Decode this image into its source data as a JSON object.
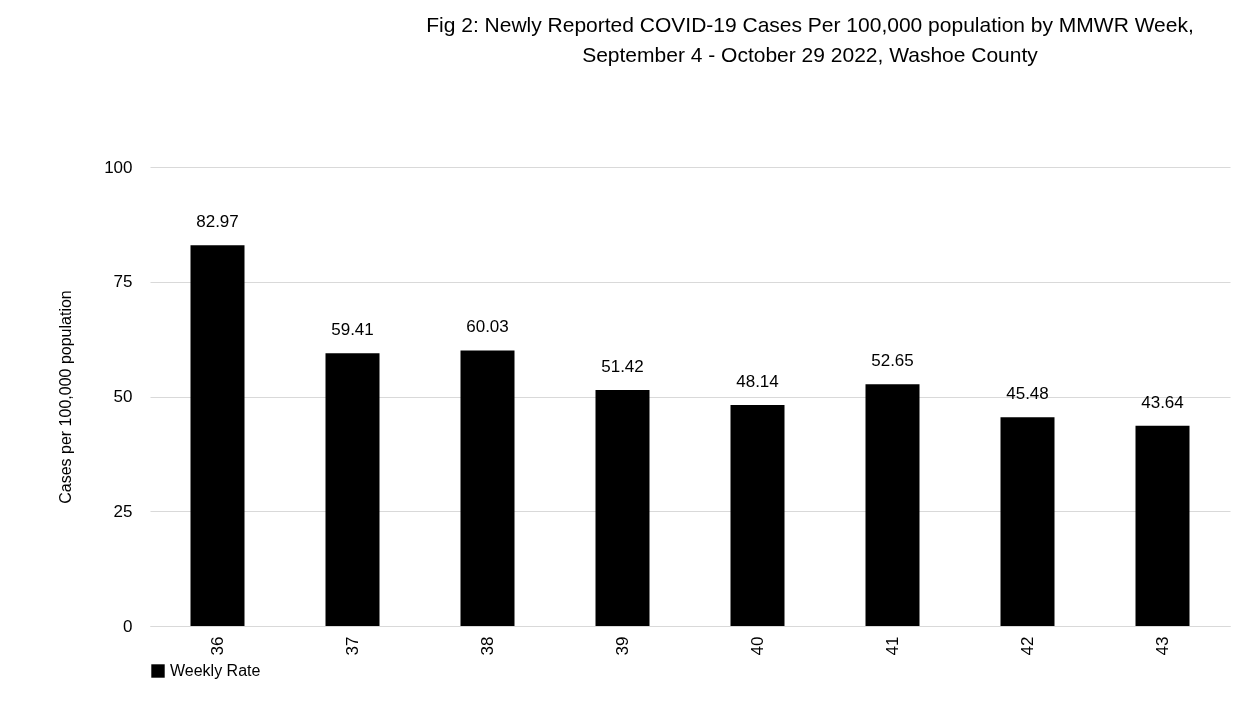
{
  "chart_data": {
    "type": "bar",
    "title": "Fig 2: Newly Reported COVID-19 Cases Per 100,000 population by MMWR Week, September 4 - October 29 2022, Washoe County",
    "ylabel": "Cases per 100,000 population",
    "categories": [
      "36",
      "37",
      "38",
      "39",
      "40",
      "41",
      "42",
      "43"
    ],
    "series": [
      {
        "name": "Weekly Rate",
        "color": "#000000",
        "values": [
          82.97,
          59.41,
          60.03,
          51.42,
          48.14,
          52.65,
          45.48,
          43.64
        ]
      }
    ],
    "ylim": [
      0,
      100
    ],
    "yticks": [
      0,
      25,
      50,
      75,
      100
    ],
    "grid": "y",
    "legend": "bottom",
    "data_labels": true
  }
}
